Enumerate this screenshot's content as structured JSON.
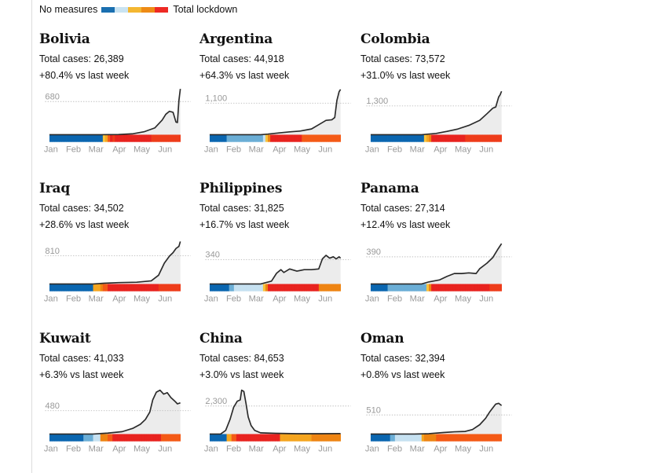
{
  "legend": {
    "left_label": "No measures",
    "right_label": "Total lockdown",
    "scale_colors": [
      "#1a6fb0",
      "#c9e3f2",
      "#f4b731",
      "#ee8b15",
      "#ee2a24"
    ]
  },
  "colors": {
    "stringency": [
      "#0a66b0",
      "#6baed6",
      "#c6e1f1",
      "#f7c33c",
      "#f5a51f",
      "#ee8413",
      "#f45a16",
      "#e8231f",
      "#ee3c1a"
    ],
    "line": "#2a2a2a",
    "area": "#ececec",
    "guide": "#bdbdbd",
    "axis_text": "#999999"
  },
  "chart_data": [
    {
      "type": "area",
      "title": "Bolivia",
      "total_cases_text": "Total cases: 26,389",
      "change_text": "+80.4% vs last week",
      "reference_label": "680",
      "reference_value": 680,
      "ylim": [
        0,
        1000
      ],
      "xlim": [
        0,
        180
      ],
      "x_ticks": [
        "Jan",
        "Feb",
        "Mar",
        "Apr",
        "May",
        "Jun"
      ],
      "series": [
        {
          "values": [
            [
              0,
              0
            ],
            [
              70,
              0
            ],
            [
              95,
              5
            ],
            [
              115,
              20
            ],
            [
              130,
              60
            ],
            [
              145,
              140
            ],
            [
              155,
              300
            ],
            [
              160,
              420
            ],
            [
              165,
              480
            ],
            [
              170,
              460
            ],
            [
              174,
              260
            ],
            [
              176,
              250
            ],
            [
              178,
              700
            ],
            [
              180,
              940
            ]
          ]
        }
      ],
      "stringency": [
        0,
        0,
        0,
        0,
        0,
        0,
        0,
        0,
        0,
        0,
        0,
        0,
        0,
        0,
        0,
        0,
        0,
        0,
        0,
        0,
        0,
        0,
        3,
        4,
        6,
        7,
        8,
        7,
        7,
        7,
        7,
        7,
        7,
        7,
        7,
        7,
        7,
        7,
        7,
        7,
        7,
        7,
        8,
        8,
        8,
        8,
        8,
        8,
        8,
        8,
        8,
        8,
        8,
        8
      ]
    },
    {
      "type": "area",
      "title": "Argentina",
      "total_cases_text": "Total cases: 44,918",
      "change_text": "+64.3% vs last week",
      "reference_label": "1,100",
      "reference_value": 1100,
      "ylim": [
        0,
        1700
      ],
      "xlim": [
        0,
        180
      ],
      "x_ticks": [
        "Jan",
        "Feb",
        "Mar",
        "Apr",
        "May",
        "Jun"
      ],
      "series": [
        {
          "values": [
            [
              0,
              0
            ],
            [
              70,
              0
            ],
            [
              80,
              20
            ],
            [
              95,
              60
            ],
            [
              110,
              100
            ],
            [
              125,
              130
            ],
            [
              140,
              200
            ],
            [
              150,
              350
            ],
            [
              160,
              500
            ],
            [
              168,
              520
            ],
            [
              172,
              600
            ],
            [
              175,
              1200
            ],
            [
              178,
              1500
            ],
            [
              180,
              1580
            ]
          ]
        }
      ],
      "stringency": [
        0,
        0,
        0,
        0,
        0,
        0,
        0,
        1,
        1,
        1,
        1,
        1,
        1,
        1,
        1,
        1,
        1,
        1,
        1,
        1,
        1,
        1,
        2,
        3,
        5,
        7,
        7,
        7,
        7,
        7,
        7,
        7,
        7,
        7,
        7,
        7,
        7,
        7,
        6,
        6,
        6,
        6,
        6,
        6,
        6,
        6,
        6,
        6,
        6,
        6,
        6,
        6,
        6,
        6
      ]
    },
    {
      "type": "area",
      "title": "Colombia",
      "total_cases_text": "Total cases: 73,572",
      "change_text": "+31.0% vs last week",
      "reference_label": "1,300",
      "reference_value": 1300,
      "ylim": [
        0,
        2200
      ],
      "xlim": [
        0,
        180
      ],
      "x_ticks": [
        "Jan",
        "Feb",
        "Mar",
        "Apr",
        "May",
        "Jun"
      ],
      "series": [
        {
          "values": [
            [
              0,
              0
            ],
            [
              70,
              0
            ],
            [
              90,
              60
            ],
            [
              105,
              150
            ],
            [
              120,
              260
            ],
            [
              135,
              420
            ],
            [
              150,
              650
            ],
            [
              160,
              950
            ],
            [
              168,
              1200
            ],
            [
              172,
              1250
            ],
            [
              176,
              1700
            ],
            [
              178,
              1800
            ],
            [
              180,
              1960
            ]
          ]
        }
      ],
      "stringency": [
        0,
        0,
        0,
        0,
        0,
        0,
        0,
        0,
        0,
        0,
        0,
        0,
        0,
        0,
        0,
        0,
        0,
        0,
        0,
        0,
        0,
        0,
        3,
        4,
        5,
        7,
        7,
        7,
        7,
        7,
        7,
        7,
        7,
        7,
        7,
        7,
        7,
        7,
        7,
        8,
        8,
        8,
        8,
        8,
        8,
        8,
        8,
        8,
        8,
        8,
        8,
        8,
        8,
        8
      ]
    },
    {
      "type": "area",
      "title": "Iraq",
      "total_cases_text": "Total cases: 34,502",
      "change_text": "+28.6% vs last week",
      "reference_label": "810",
      "reference_value": 810,
      "ylim": [
        0,
        1400
      ],
      "xlim": [
        0,
        180
      ],
      "x_ticks": [
        "Jan",
        "Feb",
        "Mar",
        "Apr",
        "May",
        "Jun"
      ],
      "series": [
        {
          "values": [
            [
              0,
              0
            ],
            [
              60,
              0
            ],
            [
              75,
              20
            ],
            [
              95,
              40
            ],
            [
              120,
              50
            ],
            [
              140,
              90
            ],
            [
              150,
              250
            ],
            [
              158,
              600
            ],
            [
              165,
              800
            ],
            [
              170,
              900
            ],
            [
              174,
              1020
            ],
            [
              178,
              1080
            ],
            [
              180,
              1220
            ]
          ]
        }
      ],
      "stringency": [
        0,
        0,
        0,
        0,
        0,
        0,
        0,
        0,
        0,
        0,
        0,
        0,
        0,
        0,
        0,
        0,
        0,
        0,
        4,
        4,
        4,
        5,
        6,
        6,
        7,
        7,
        7,
        7,
        7,
        7,
        7,
        7,
        7,
        7,
        7,
        7,
        7,
        7,
        7,
        7,
        7,
        7,
        7,
        7,
        7,
        8,
        8,
        8,
        8,
        8,
        8,
        8,
        8,
        8
      ]
    },
    {
      "type": "area",
      "title": "Philippines",
      "total_cases_text": "Total cases: 31,825",
      "change_text": "+16.7% vs last week",
      "reference_label": "340",
      "reference_value": 340,
      "ylim": [
        0,
        680
      ],
      "xlim": [
        0,
        180
      ],
      "x_ticks": [
        "Jan",
        "Feb",
        "Mar",
        "Apr",
        "May",
        "Jun"
      ],
      "series": [
        {
          "values": [
            [
              0,
              0
            ],
            [
              70,
              0
            ],
            [
              85,
              40
            ],
            [
              92,
              150
            ],
            [
              98,
              200
            ],
            [
              102,
              160
            ],
            [
              110,
              210
            ],
            [
              120,
              180
            ],
            [
              130,
              200
            ],
            [
              140,
              200
            ],
            [
              150,
              210
            ],
            [
              155,
              350
            ],
            [
              160,
              400
            ],
            [
              165,
              360
            ],
            [
              170,
              380
            ],
            [
              174,
              350
            ],
            [
              178,
              380
            ],
            [
              180,
              360
            ]
          ]
        }
      ],
      "stringency": [
        0,
        0,
        0,
        0,
        0,
        0,
        0,
        0,
        1,
        1,
        2,
        2,
        2,
        2,
        2,
        2,
        2,
        2,
        2,
        2,
        2,
        2,
        3,
        5,
        7,
        7,
        7,
        7,
        7,
        7,
        7,
        7,
        7,
        7,
        7,
        7,
        7,
        7,
        7,
        7,
        7,
        7,
        7,
        7,
        7,
        5,
        5,
        5,
        5,
        5,
        5,
        5,
        5,
        5
      ]
    },
    {
      "type": "area",
      "title": "Panama",
      "total_cases_text": "Total cases: 27,314",
      "change_text": "+12.4% vs last week",
      "reference_label": "390",
      "reference_value": 390,
      "ylim": [
        0,
        700
      ],
      "xlim": [
        0,
        180
      ],
      "x_ticks": [
        "Jan",
        "Feb",
        "Mar",
        "Apr",
        "May",
        "Jun"
      ],
      "series": [
        {
          "values": [
            [
              0,
              0
            ],
            [
              70,
              0
            ],
            [
              80,
              30
            ],
            [
              95,
              60
            ],
            [
              105,
              110
            ],
            [
              115,
              150
            ],
            [
              125,
              150
            ],
            [
              135,
              160
            ],
            [
              145,
              150
            ],
            [
              150,
              220
            ],
            [
              160,
              300
            ],
            [
              168,
              380
            ],
            [
              175,
              500
            ],
            [
              180,
              580
            ]
          ]
        }
      ],
      "stringency": [
        0,
        0,
        0,
        0,
        0,
        0,
        0,
        1,
        1,
        1,
        1,
        1,
        1,
        1,
        1,
        1,
        1,
        1,
        1,
        1,
        1,
        1,
        1,
        3,
        5,
        7,
        7,
        7,
        7,
        7,
        7,
        7,
        7,
        7,
        7,
        7,
        7,
        7,
        7,
        7,
        7,
        7,
        7,
        7,
        7,
        7,
        7,
        7,
        7,
        8,
        8,
        8,
        8,
        8
      ]
    },
    {
      "type": "area",
      "title": "Kuwait",
      "total_cases_text": "Total cases: 41,033",
      "change_text": "+6.3% vs last week",
      "reference_label": "480",
      "reference_value": 480,
      "ylim": [
        0,
        1000
      ],
      "xlim": [
        0,
        180
      ],
      "x_ticks": [
        "Jan",
        "Feb",
        "Mar",
        "Apr",
        "May",
        "Jun"
      ],
      "series": [
        {
          "values": [
            [
              0,
              0
            ],
            [
              60,
              0
            ],
            [
              80,
              20
            ],
            [
              100,
              50
            ],
            [
              115,
              120
            ],
            [
              125,
              200
            ],
            [
              132,
              300
            ],
            [
              138,
              450
            ],
            [
              142,
              700
            ],
            [
              147,
              860
            ],
            [
              152,
              900
            ],
            [
              157,
              820
            ],
            [
              162,
              850
            ],
            [
              167,
              750
            ],
            [
              172,
              680
            ],
            [
              176,
              620
            ],
            [
              180,
              640
            ]
          ]
        }
      ],
      "stringency": [
        0,
        0,
        0,
        0,
        0,
        0,
        0,
        0,
        0,
        0,
        0,
        0,
        0,
        0,
        1,
        1,
        1,
        1,
        2,
        2,
        2,
        5,
        5,
        5,
        6,
        6,
        7,
        7,
        7,
        7,
        7,
        7,
        7,
        7,
        7,
        7,
        7,
        7,
        7,
        7,
        7,
        7,
        7,
        7,
        7,
        7,
        6,
        6,
        6,
        6,
        6,
        6,
        6,
        6
      ]
    },
    {
      "type": "area",
      "title": "China",
      "total_cases_text": "Total cases: 84,653",
      "change_text": "+3.0% vs last week",
      "reference_label": "2,300",
      "reference_value": 2300,
      "ylim": [
        0,
        4000
      ],
      "xlim": [
        0,
        180
      ],
      "x_ticks": [
        "Jan",
        "Feb",
        "Mar",
        "Apr",
        "May",
        "Jun"
      ],
      "series": [
        {
          "values": [
            [
              0,
              0
            ],
            [
              15,
              0
            ],
            [
              22,
              300
            ],
            [
              28,
              1200
            ],
            [
              33,
              2200
            ],
            [
              38,
              2700
            ],
            [
              42,
              2800
            ],
            [
              44,
              3600
            ],
            [
              47,
              3500
            ],
            [
              50,
              2500
            ],
            [
              53,
              1400
            ],
            [
              57,
              700
            ],
            [
              62,
              300
            ],
            [
              70,
              100
            ],
            [
              90,
              60
            ],
            [
              120,
              30
            ],
            [
              150,
              30
            ],
            [
              180,
              40
            ]
          ]
        }
      ],
      "stringency": [
        0,
        0,
        0,
        0,
        0,
        0,
        0,
        4,
        4,
        6,
        6,
        7,
        7,
        7,
        7,
        7,
        7,
        7,
        7,
        7,
        7,
        7,
        7,
        7,
        7,
        7,
        7,
        7,
        7,
        4,
        4,
        4,
        4,
        4,
        4,
        4,
        4,
        4,
        4,
        4,
        4,
        4,
        5,
        5,
        5,
        5,
        5,
        5,
        5,
        5,
        5,
        5,
        5,
        5
      ]
    },
    {
      "type": "area",
      "title": "Oman",
      "total_cases_text": "Total cases: 32,394",
      "change_text": "+0.8% vs last week",
      "reference_label": "510",
      "reference_value": 510,
      "ylim": [
        0,
        1300
      ],
      "xlim": [
        0,
        180
      ],
      "x_ticks": [
        "Jan",
        "Feb",
        "Mar",
        "Apr",
        "May",
        "Jun"
      ],
      "series": [
        {
          "values": [
            [
              0,
              0
            ],
            [
              60,
              0
            ],
            [
              80,
              10
            ],
            [
              100,
              40
            ],
            [
              115,
              60
            ],
            [
              130,
              70
            ],
            [
              140,
              120
            ],
            [
              150,
              250
            ],
            [
              158,
              420
            ],
            [
              164,
              600
            ],
            [
              168,
              700
            ],
            [
              172,
              800
            ],
            [
              176,
              820
            ],
            [
              180,
              760
            ]
          ]
        }
      ],
      "stringency": [
        0,
        0,
        0,
        0,
        0,
        0,
        0,
        0,
        1,
        1,
        2,
        2,
        2,
        2,
        2,
        2,
        2,
        2,
        2,
        2,
        2,
        4,
        5,
        5,
        5,
        5,
        5,
        6,
        6,
        6,
        6,
        6,
        6,
        6,
        6,
        6,
        6,
        6,
        6,
        6,
        6,
        6,
        6,
        6,
        6,
        6,
        6,
        6,
        6,
        6,
        6,
        6,
        6,
        6
      ]
    }
  ]
}
